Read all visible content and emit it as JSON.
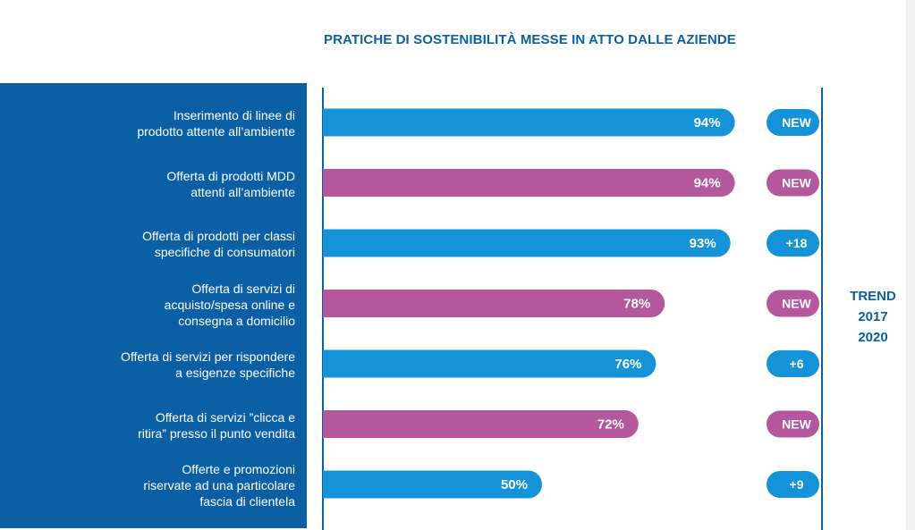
{
  "chart_data": {
    "type": "bar",
    "orientation": "horizontal",
    "title": "PRATICHE DI SOSTENIBILITÀ MESSE IN ATTO DALLE AZIENDE",
    "xlim": [
      0,
      100
    ],
    "unit": "%",
    "categories": [
      [
        "Inserimento di linee di",
        "prodotto attente all’ambiente"
      ],
      [
        "Offerta di prodotti MDD",
        "attenti all’ambiente"
      ],
      [
        "Offerta di prodotti per classi",
        "specifiche di consumatori"
      ],
      [
        "Offerta di servizi di",
        "acquisto/spesa online e",
        "consegna a domicilio"
      ],
      [
        "Offerta di servizi per rispondere",
        "a esigenze specifiche"
      ],
      [
        "Offerta di servizi ”clicca e",
        "ritira” presso il punto vendita"
      ],
      [
        "Offerte e promozioni",
        "riservate ad una particolare",
        "fascia di clientela"
      ]
    ],
    "values": [
      94,
      94,
      93,
      78,
      76,
      72,
      50
    ],
    "value_labels": [
      "94%",
      "94%",
      "93%",
      "78%",
      "76%",
      "72%",
      "50%"
    ],
    "trend_title": [
      "TREND",
      "2017",
      "2020"
    ],
    "trend": [
      "NEW",
      "NEW",
      "+18",
      "NEW",
      "+6",
      "NEW",
      "+9"
    ]
  },
  "colors": {
    "primary_blue": "#0b5fa5",
    "bar_blue": "#1493d8",
    "bar_magenta": "#b5579d",
    "axis": "#0b5fa5"
  },
  "bar_colors": [
    "#1493d8",
    "#b5579d",
    "#1493d8",
    "#b5579d",
    "#1493d8",
    "#b5579d",
    "#1493d8"
  ]
}
